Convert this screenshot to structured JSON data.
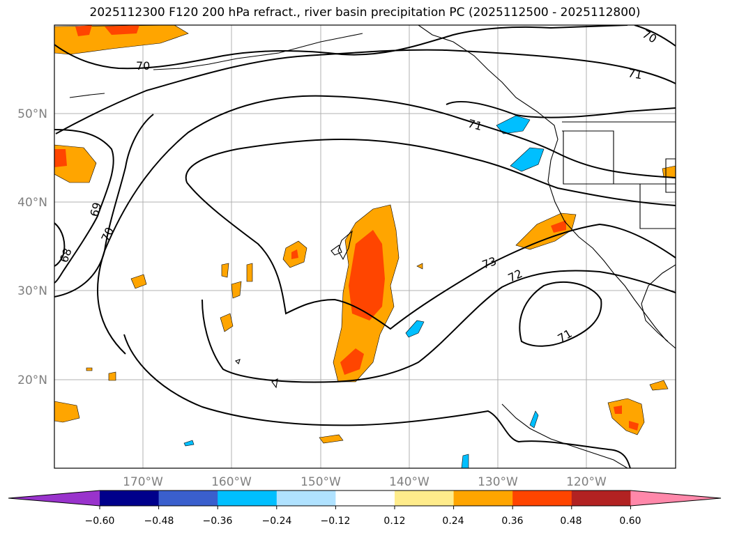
{
  "title": "2025112300 F120 200 hPa refract., river basin precipitation PC (2025112500 - 2025112800)",
  "lat_labels": [
    "50°N",
    "40°N",
    "30°N",
    "20°N"
  ],
  "lon_labels": [
    "170°W",
    "160°W",
    "150°W",
    "140°W",
    "130°W",
    "120°W"
  ],
  "contour_labels": [
    "70",
    "70",
    "71",
    "71",
    "69",
    "70",
    "68",
    "73",
    "72",
    "71"
  ],
  "colorbar": {
    "ticks": [
      "−0.60",
      "−0.48",
      "−0.36",
      "−0.24",
      "−0.12",
      "0.12",
      "0.24",
      "0.36",
      "0.48",
      "0.60"
    ],
    "colors": [
      "#9933cc",
      "#00008b",
      "#3a5fcd",
      "#00bfff",
      "#b0e2ff",
      "#ffffff",
      "#ffec8b",
      "#ffa500",
      "#ff4500",
      "#b22222",
      "#ff88aa"
    ]
  },
  "colors": {
    "positive_fill": "#ffa500",
    "strong_positive_fill": "#ff4500",
    "negative_fill": "#00bfff",
    "grid": "#b0b0b0",
    "contour": "#000000"
  }
}
